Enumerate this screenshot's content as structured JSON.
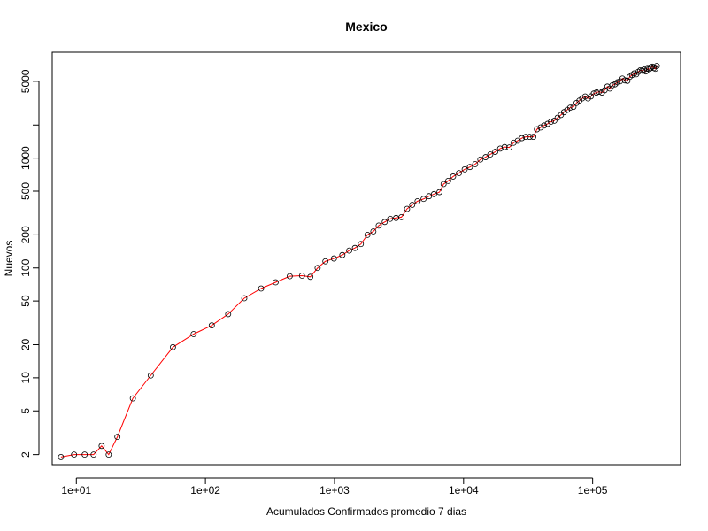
{
  "chart_data": {
    "type": "scatter",
    "title": "Mexico",
    "xlabel": "Acumulados Confirmados promedio  7  dias",
    "ylabel": "Nuevos",
    "xscale": "log",
    "yscale": "log",
    "xlim": [
      6.5,
      480000
    ],
    "ylim": [
      1.62,
      9200
    ],
    "x_ticks": [
      10,
      100,
      1000,
      10000,
      100000
    ],
    "x_tick_labels": [
      "1e+01",
      "1e+02",
      "1e+03",
      "1e+04",
      "1e+05"
    ],
    "y_ticks": [
      2,
      5,
      10,
      20,
      50,
      100,
      200,
      500,
      1000,
      2000,
      5000
    ],
    "y_tick_labels": [
      "2",
      "5",
      "10",
      "20",
      "50",
      "100",
      "200",
      "500",
      "1000",
      "",
      "5000"
    ],
    "grid": false,
    "line_color": "#ff0000",
    "marker": "open-circle",
    "series": [
      {
        "x": [
          7.6,
          9.6,
          11.6,
          13.6,
          15.7,
          17.8,
          20.8,
          27.4,
          37.7,
          56,
          81,
          112,
          150,
          200,
          270,
          350,
          450,
          560,
          650,
          740,
          850,
          990,
          1150,
          1300,
          1440,
          1600,
          1800,
          2000,
          2200,
          2450,
          2700,
          3000,
          3300,
          3650,
          4000,
          4400,
          4900,
          5400,
          5900,
          6500,
          7000,
          7600,
          8300,
          9200,
          10200,
          11200,
          12300,
          13500,
          14800,
          16100,
          17600,
          19200,
          20800,
          22600,
          24400,
          26300,
          28300,
          30300,
          32500,
          34700,
          37000,
          39500,
          42000,
          44800,
          47500,
          50500,
          53500,
          56800,
          60000,
          63500,
          67000,
          71000,
          75000,
          79000,
          83000,
          87500,
          92000,
          97000,
          102000,
          107000,
          112000,
          118000,
          124000,
          130000,
          136000,
          142000,
          149000,
          156000,
          163000,
          170000,
          178000,
          186000,
          194000,
          202000,
          210000,
          218000,
          226000,
          234000,
          242000,
          250000,
          258000,
          266000,
          274000,
          282000,
          290000,
          298000,
          306000,
          314000
        ],
        "y": [
          1.9,
          2.0,
          2.0,
          2.0,
          2.4,
          2.0,
          2.9,
          6.5,
          10.5,
          19,
          25,
          30,
          38,
          53,
          65,
          74,
          84,
          85,
          83,
          100,
          115,
          122,
          131,
          144,
          152,
          165,
          200,
          215,
          243,
          262,
          280,
          285,
          290,
          345,
          375,
          405,
          425,
          450,
          470,
          490,
          580,
          620,
          680,
          730,
          790,
          830,
          880,
          970,
          1020,
          1080,
          1140,
          1220,
          1260,
          1250,
          1380,
          1440,
          1520,
          1560,
          1560,
          1560,
          1830,
          1900,
          1980,
          2050,
          2140,
          2190,
          2330,
          2470,
          2620,
          2750,
          2880,
          2930,
          3180,
          3340,
          3500,
          3640,
          3500,
          3650,
          3870,
          3950,
          4020,
          3950,
          4150,
          4480,
          4300,
          4600,
          4700,
          4900,
          5000,
          5300,
          5100,
          5050,
          5500,
          5700,
          5900,
          5800,
          6100,
          6300,
          6250,
          6400,
          6150,
          6500,
          6450,
          6600,
          6800,
          6600,
          6500,
          6900
        ]
      }
    ]
  }
}
